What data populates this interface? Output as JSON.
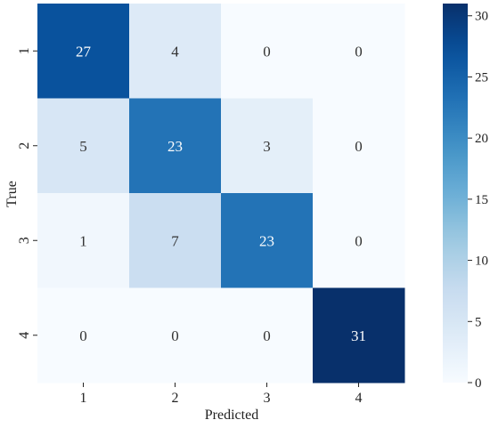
{
  "chart_data": {
    "type": "heatmap",
    "title": "",
    "xlabel": "Predicted",
    "ylabel": "True",
    "x_categories": [
      "1",
      "2",
      "3",
      "4"
    ],
    "y_categories": [
      "1",
      "2",
      "3",
      "4"
    ],
    "matrix": [
      [
        27,
        4,
        0,
        0
      ],
      [
        5,
        23,
        3,
        0
      ],
      [
        1,
        7,
        23,
        0
      ],
      [
        0,
        0,
        0,
        31
      ]
    ],
    "colormap": "Blues",
    "color_range": [
      0,
      31
    ],
    "colorbar": {
      "ticks": [
        0,
        5,
        10,
        15,
        20,
        25,
        30
      ],
      "tick_labels": [
        "0",
        "5",
        "10",
        "15",
        "20",
        "25",
        "30"
      ],
      "placement": "right"
    },
    "grid": false,
    "legend": "none",
    "text_colors": {
      "light": "#ffffff",
      "dark": "#333333"
    }
  }
}
